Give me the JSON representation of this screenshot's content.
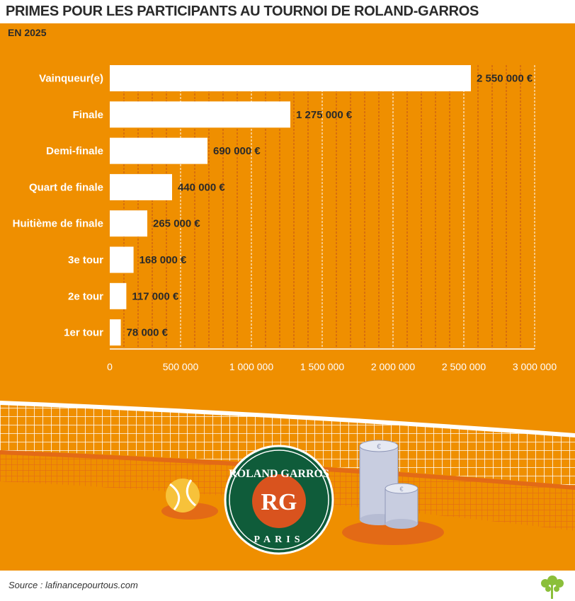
{
  "header": {
    "title": "PRIMES POUR LES PARTICIPANTS AU TOURNOI DE ROLAND-GARROS",
    "subtitle": "EN 2025"
  },
  "chart_data": {
    "type": "bar",
    "orientation": "horizontal",
    "categories": [
      "Vainqueur(e)",
      "Finale",
      "Demi-finale",
      "Quart de finale",
      "Huitième de finale",
      "3e tour",
      "2e tour",
      "1er tour"
    ],
    "values": [
      2550000,
      1275000,
      690000,
      440000,
      265000,
      168000,
      117000,
      78000
    ],
    "value_labels": [
      "2 550 000 €",
      "1 275 000 €",
      "690 000 €",
      "440 000 €",
      "265 000 €",
      "168 000 €",
      "117 000 €",
      "78 000 €"
    ],
    "x_ticks": [
      0,
      500000,
      1000000,
      1500000,
      2000000,
      2500000,
      3000000
    ],
    "x_tick_labels": [
      "0",
      "500 000",
      "1 000 000",
      "1 500 000",
      "2 000 000",
      "2 500 000",
      "3 000 000"
    ],
    "xlim": [
      0,
      3000000
    ],
    "grid": true,
    "colors": {
      "background": "#ef8f00",
      "bar": "#ffffff",
      "text": "#2a2a2a",
      "grid_major": "#ffffff",
      "grid_minor": "#c0501a"
    }
  },
  "illustration": {
    "logo_text": "ROLAND GARROS",
    "logo_city": "PARIS",
    "icons": [
      "tennis-net-icon",
      "tennis-ball-icon",
      "euro-coin-stack-icon"
    ]
  },
  "footer": {
    "source": "Source : lafinancepourtous.com",
    "logo_icon": "sprout-tree-icon"
  }
}
